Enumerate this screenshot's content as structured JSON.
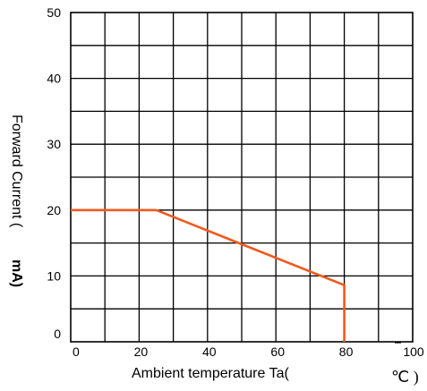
{
  "chart_data": {
    "type": "line",
    "title": "",
    "xlabel": {
      "text": "Ambient temperature Ta(",
      "unit": "℃ )"
    },
    "ylabel": {
      "text": "Forward Current (",
      "unit": "mA)"
    },
    "xlim": [
      0,
      100
    ],
    "ylim": [
      0,
      50
    ],
    "x_ticks": [
      0,
      20,
      40,
      60,
      80,
      100
    ],
    "x_tick_labels": [
      "0",
      "20",
      "40",
      "60",
      "80",
      "100"
    ],
    "y_ticks": [
      0,
      10,
      20,
      30,
      40,
      50
    ],
    "y_tick_labels": [
      "0",
      "10",
      "20",
      "30",
      "40",
      "50"
    ],
    "grid": true,
    "legend": "none",
    "series": [
      {
        "color": "#f05a1f",
        "x": [
          0,
          25,
          80,
          80
        ],
        "y": [
          20,
          20,
          8.6,
          0
        ]
      }
    ]
  }
}
